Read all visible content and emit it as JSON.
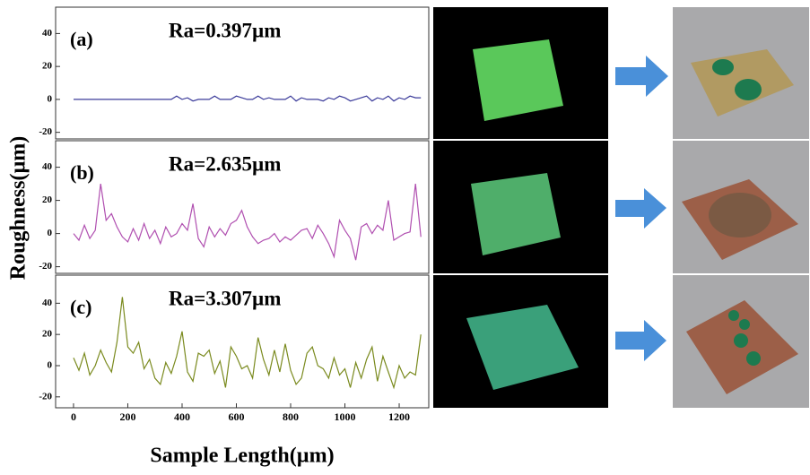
{
  "chart_data": [
    {
      "type": "line",
      "panel_label": "(a)",
      "annotation": "Ra=0.397µm",
      "x": [
        0,
        20,
        40,
        60,
        80,
        100,
        120,
        140,
        160,
        180,
        200,
        220,
        240,
        260,
        280,
        300,
        320,
        340,
        360,
        380,
        400,
        420,
        440,
        460,
        480,
        500,
        520,
        540,
        560,
        580,
        600,
        620,
        640,
        660,
        680,
        700,
        720,
        740,
        760,
        780,
        800,
        820,
        840,
        860,
        880,
        900,
        920,
        940,
        960,
        980,
        1000,
        1020,
        1040,
        1060,
        1080,
        1100,
        1120,
        1140,
        1160,
        1180,
        1200,
        1220,
        1240,
        1260,
        1280
      ],
      "series": [
        {
          "name": "(a)",
          "color": "#3b3b9a",
          "values": [
            0,
            0,
            0,
            0,
            0,
            0,
            0,
            0,
            0,
            0,
            0,
            0,
            0,
            0,
            0,
            0,
            0,
            0,
            0,
            2,
            0,
            1,
            -1,
            0,
            0,
            0,
            2,
            0,
            0,
            0,
            2,
            1,
            0,
            0,
            2,
            0,
            1,
            0,
            0,
            0,
            2,
            -1,
            1,
            0,
            0,
            0,
            -1,
            1,
            0,
            2,
            1,
            -1,
            0,
            1,
            2,
            -1,
            1,
            0,
            2,
            -1,
            1,
            0,
            2,
            1,
            1
          ]
        }
      ],
      "xlim": [
        -66,
        1309
      ],
      "ylim": [
        -24,
        56
      ],
      "yticks": [
        -20,
        0,
        20,
        40
      ]
    },
    {
      "type": "line",
      "panel_label": "(b)",
      "annotation": "Ra=2.635µm",
      "ylabel": "Roughness(µm)",
      "x": [
        0,
        20,
        40,
        60,
        80,
        100,
        120,
        140,
        160,
        180,
        200,
        220,
        240,
        260,
        280,
        300,
        320,
        340,
        360,
        380,
        400,
        420,
        440,
        460,
        480,
        500,
        520,
        540,
        560,
        580,
        600,
        620,
        640,
        660,
        680,
        700,
        720,
        740,
        760,
        780,
        800,
        820,
        840,
        860,
        880,
        900,
        920,
        940,
        960,
        980,
        1000,
        1020,
        1040,
        1060,
        1080,
        1100,
        1120,
        1140,
        1160,
        1180,
        1200,
        1220,
        1240,
        1260,
        1280
      ],
      "series": [
        {
          "name": "(b)",
          "color": "#b04fb0",
          "values": [
            0,
            -4,
            5,
            -3,
            2,
            30,
            8,
            12,
            4,
            -2,
            -5,
            3,
            -4,
            6,
            -3,
            2,
            -6,
            4,
            -2,
            0,
            6,
            2,
            18,
            -3,
            -8,
            4,
            -2,
            3,
            -1,
            6,
            8,
            14,
            4,
            -2,
            -6,
            -4,
            -3,
            0,
            -5,
            -2,
            -4,
            -1,
            2,
            3,
            -3,
            5,
            0,
            -6,
            -14,
            8,
            2,
            -3,
            -16,
            4,
            6,
            0,
            5,
            2,
            20,
            -4,
            -2,
            0,
            1,
            30,
            -2
          ]
        }
      ],
      "xlim": [
        -66,
        1309
      ],
      "ylim": [
        -24,
        56
      ],
      "yticks": [
        -20,
        0,
        20,
        40
      ]
    },
    {
      "type": "line",
      "panel_label": "(c)",
      "annotation": "Ra=3.307µm",
      "xlabel": "Sample Length(µm)",
      "x": [
        0,
        20,
        40,
        60,
        80,
        100,
        120,
        140,
        160,
        180,
        200,
        220,
        240,
        260,
        280,
        300,
        320,
        340,
        360,
        380,
        400,
        420,
        440,
        460,
        480,
        500,
        520,
        540,
        560,
        580,
        600,
        620,
        640,
        660,
        680,
        700,
        720,
        740,
        760,
        780,
        800,
        820,
        840,
        860,
        880,
        900,
        920,
        940,
        960,
        980,
        1000,
        1020,
        1040,
        1060,
        1080,
        1100,
        1120,
        1140,
        1160,
        1180,
        1200,
        1220,
        1240,
        1260,
        1280
      ],
      "series": [
        {
          "name": "(c)",
          "color": "#7a8a1e",
          "values": [
            5,
            -3,
            8,
            -6,
            0,
            10,
            2,
            -4,
            15,
            44,
            12,
            8,
            15,
            -2,
            4,
            -8,
            -12,
            2,
            -5,
            6,
            22,
            -4,
            -10,
            8,
            6,
            10,
            -5,
            3,
            -14,
            12,
            6,
            -2,
            0,
            -8,
            18,
            4,
            -6,
            10,
            -4,
            14,
            -3,
            -12,
            -8,
            8,
            12,
            0,
            -2,
            -8,
            5,
            -6,
            -2,
            -14,
            2,
            -8,
            4,
            12,
            -10,
            6,
            -4,
            -14,
            0,
            -8,
            -4,
            -6,
            20
          ]
        }
      ],
      "xlim": [
        -66,
        1309
      ],
      "ylim": [
        -27,
        58
      ],
      "yticks": [
        -20,
        0,
        20,
        40
      ],
      "xticks": [
        0,
        200,
        400,
        600,
        800,
        1000,
        1200
      ]
    }
  ]
}
